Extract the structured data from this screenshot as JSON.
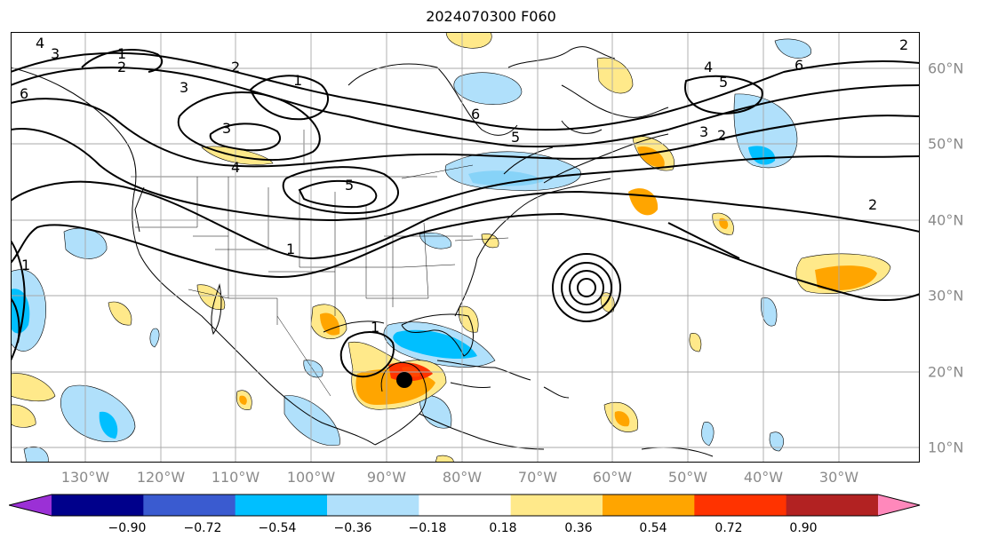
{
  "title": "2024070300 F060",
  "lon_labels": [
    "130°W",
    "120°W",
    "110°W",
    "100°W",
    "90°W",
    "80°W",
    "70°W",
    "60°W",
    "50°W",
    "40°W",
    "30°W"
  ],
  "lat_labels": [
    "60°N",
    "50°N",
    "40°N",
    "30°N",
    "20°N",
    "10°N"
  ],
  "colorbar": {
    "tick_labels": [
      "−0.90",
      "−0.72",
      "−0.54",
      "−0.36",
      "−0.18",
      "0.18",
      "0.36",
      "0.54",
      "0.72",
      "0.90"
    ],
    "colors": [
      "#9b30d6",
      "#00008b",
      "#3a5bd0",
      "#00bfff",
      "#b0e0fb",
      "#ffffff",
      "#ffe98a",
      "#ffa500",
      "#ff3300",
      "#b22222",
      "#ff88bb"
    ]
  },
  "contour_labels": [
    "4",
    "3",
    "1",
    "2",
    "6",
    "2",
    "3",
    "1",
    "3",
    "4",
    "5",
    "6",
    "5",
    "3",
    "2",
    "4",
    "5",
    "6",
    "2",
    "1",
    "1",
    "1",
    "2"
  ],
  "storm_marker": "black-dot"
}
